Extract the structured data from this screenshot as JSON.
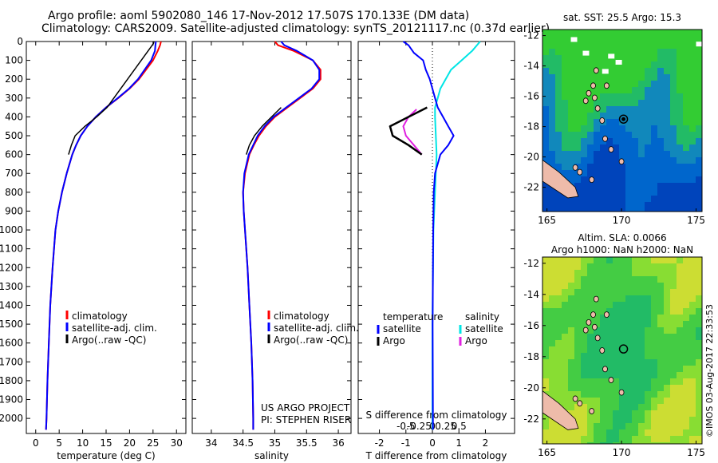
{
  "header": {
    "line1": "Argo profile: aoml 5902080_146 17-Nov-2012 17.507S 170.133E (DM data)",
    "line2": "Climatology: CARS2009. Satellite-adjusted climatology: synTS_20121117.nc (0.37d earlier)"
  },
  "colors": {
    "clim": "#ff0000",
    "sat": "#0000ff",
    "argo": "#000000",
    "sat_s": "#00e5e5",
    "argo_s": "#e020e0"
  },
  "depth_ticks": [
    0,
    100,
    200,
    300,
    400,
    500,
    600,
    700,
    800,
    900,
    1000,
    1100,
    1200,
    1300,
    1400,
    1500,
    1600,
    1700,
    1800,
    1900,
    2000
  ],
  "chart_data": [
    {
      "type": "line",
      "xlabel": "temperature (deg C)",
      "xlim": [
        -2,
        32
      ],
      "ylim": [
        2080,
        0
      ],
      "xticks": [
        0,
        5,
        10,
        15,
        20,
        25,
        30
      ],
      "legend": [
        "climatology",
        "satellite-adj. clim.",
        "Argo(..raw -QC)"
      ],
      "series": [
        {
          "name": "climatology",
          "depth": [
            0,
            20,
            50,
            100,
            150,
            200,
            250,
            300,
            350,
            400,
            450,
            500,
            550,
            600,
            700,
            800,
            900,
            1000,
            1200,
            1400,
            1600,
            1800,
            2000,
            2060
          ],
          "values": [
            26.7,
            26.5,
            26.0,
            25.0,
            23.5,
            22.0,
            20.0,
            17.6,
            15.0,
            12.8,
            11.0,
            9.6,
            8.6,
            7.8,
            6.6,
            5.6,
            4.8,
            4.2,
            3.6,
            3.1,
            2.8,
            2.5,
            2.3,
            2.2
          ]
        },
        {
          "name": "satellite-adj. clim.",
          "depth": [
            0,
            20,
            50,
            100,
            150,
            200,
            250,
            300,
            350,
            400,
            450,
            500,
            550,
            600,
            700,
            800,
            900,
            1000,
            1200,
            1400,
            1600,
            1800,
            2000,
            2060
          ],
          "values": [
            25.6,
            25.5,
            25.4,
            24.6,
            23.2,
            21.8,
            19.9,
            17.5,
            15.0,
            12.8,
            11.0,
            9.6,
            8.6,
            7.8,
            6.6,
            5.6,
            4.8,
            4.2,
            3.6,
            3.1,
            2.8,
            2.5,
            2.3,
            2.2
          ]
        },
        {
          "name": "Argo(..raw -QC)",
          "depth": [
            0,
            10,
            350,
            400,
            450,
            500,
            550,
            600
          ],
          "values": [
            25.2,
            25.1,
            15.2,
            13.0,
            10.5,
            8.4,
            7.6,
            7.0
          ]
        }
      ]
    },
    {
      "type": "line",
      "xlabel": "salinity",
      "xlim": [
        33.7,
        36.2
      ],
      "ylim": [
        2080,
        0
      ],
      "xticks": [
        34,
        34.5,
        35,
        35.5,
        36
      ],
      "legend": [
        "climatology",
        "satellite-adj. clim.",
        "Argo(..raw -QC)"
      ],
      "series": [
        {
          "name": "climatology",
          "depth": [
            0,
            20,
            50,
            100,
            150,
            200,
            250,
            300,
            350,
            400,
            450,
            500,
            550,
            600,
            700,
            800,
            900,
            1000,
            1200,
            1400,
            1600,
            1800,
            2000,
            2060
          ],
          "values": [
            35.0,
            35.05,
            35.3,
            35.6,
            35.72,
            35.72,
            35.6,
            35.4,
            35.2,
            35.0,
            34.86,
            34.75,
            34.67,
            34.6,
            34.53,
            34.5,
            34.51,
            34.53,
            34.57,
            34.6,
            34.63,
            34.65,
            34.66,
            34.66
          ]
        },
        {
          "name": "satellite-adj. clim.",
          "depth": [
            0,
            20,
            50,
            100,
            150,
            200,
            250,
            300,
            350,
            400,
            450,
            500,
            550,
            600,
            700,
            800,
            900,
            1000,
            1200,
            1400,
            1600,
            1800,
            2000,
            2060
          ],
          "values": [
            35.1,
            35.15,
            35.35,
            35.6,
            35.7,
            35.7,
            35.58,
            35.38,
            35.18,
            34.98,
            34.84,
            34.73,
            34.66,
            34.59,
            34.52,
            34.5,
            34.51,
            34.53,
            34.57,
            34.6,
            34.63,
            34.65,
            34.66,
            34.66
          ]
        },
        {
          "name": "Argo(..raw -QC)",
          "depth": [
            350,
            400,
            450,
            500,
            550,
            600
          ],
          "values": [
            35.1,
            34.95,
            34.8,
            34.68,
            34.6,
            34.55
          ]
        }
      ]
    },
    {
      "type": "line",
      "xlabel": "T difference from climatology",
      "xlabel_top": "S difference from climatology",
      "xlim": [
        -2.8,
        3.1
      ],
      "ylim": [
        2080,
        0
      ],
      "xticks": [
        -2,
        -1,
        0,
        1,
        2
      ],
      "xticks_top": [
        "-0.5",
        "-0.25",
        "0",
        "0.25",
        "0.5"
      ],
      "legend_temperature": [
        "temperature",
        "satellite",
        "Argo"
      ],
      "legend_salinity": [
        "salinity",
        "satellite",
        "Argo"
      ],
      "series": [
        {
          "name": "T satellite",
          "depth": [
            0,
            20,
            60,
            100,
            150,
            200,
            250,
            300,
            350,
            400,
            450,
            500,
            550,
            600,
            700,
            800,
            1000,
            1500,
            2000,
            2060
          ],
          "values": [
            -1.1,
            -0.9,
            -0.7,
            -0.35,
            -0.25,
            -0.1,
            0.0,
            0.1,
            0.2,
            0.4,
            0.6,
            0.8,
            0.6,
            0.3,
            0.1,
            0.05,
            0.03,
            0.01,
            0.02,
            0.02
          ]
        },
        {
          "name": "T Argo",
          "depth": [
            350,
            450,
            500,
            550,
            600
          ],
          "values": [
            -0.2,
            -1.6,
            -1.5,
            -0.9,
            -0.4
          ]
        },
        {
          "name": "S satellite",
          "depth": [
            0,
            50,
            100,
            150,
            200,
            250,
            300,
            350,
            400,
            600,
            800,
            1000,
            1500,
            2000,
            2060
          ],
          "values": [
            0.9,
            0.75,
            0.55,
            0.35,
            0.25,
            0.15,
            0.1,
            0.05,
            0.05,
            0.08,
            0.05,
            0.02,
            0.0,
            0.0,
            0.0
          ]
        },
        {
          "name": "S Argo",
          "depth": [
            360,
            400,
            450,
            500,
            550,
            600
          ],
          "values": [
            -0.3,
            -0.45,
            -0.55,
            -0.5,
            -0.35,
            -0.2
          ]
        }
      ]
    },
    {
      "type": "heatmap",
      "title": "sat. SST: 25.5  Argo: 15.3",
      "xlim": [
        164.7,
        175.4
      ],
      "ylim": [
        -23.6,
        -11.6
      ],
      "xticks": [
        165,
        170,
        175
      ],
      "yticks": [
        -12,
        -14,
        -16,
        -18,
        -20,
        -22
      ],
      "marker": {
        "lon": 170.133,
        "lat": -17.507
      }
    },
    {
      "type": "heatmap",
      "title_line1": "Altim. SLA: 0.0066",
      "title_line2": "Argo h1000: NaN h2000: NaN",
      "xlim": [
        164.7,
        175.4
      ],
      "ylim": [
        -23.6,
        -11.6
      ],
      "xticks": [
        165,
        170,
        175
      ],
      "yticks": [
        -12,
        -14,
        -16,
        -18,
        -20,
        -22
      ],
      "marker": {
        "lon": 170.133,
        "lat": -17.507
      }
    }
  ],
  "credit": "©IMOS 03-Aug-2017 22:33:53"
}
